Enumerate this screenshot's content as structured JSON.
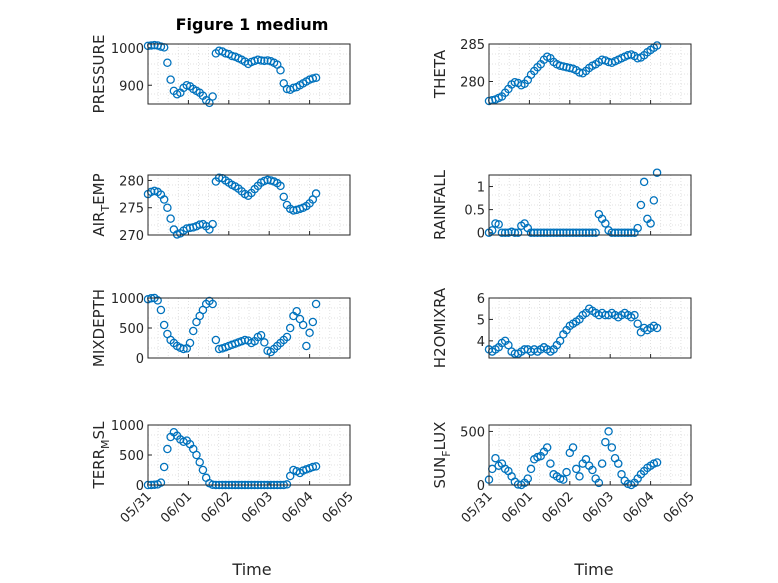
{
  "figure_title": "Figure 1 medium",
  "xlabel": "Time",
  "x_ticks": [
    "05/31",
    "06/01",
    "06/02",
    "06/03",
    "06/04",
    "06/05"
  ],
  "marker_color": "#0072BD",
  "chart_data": [
    {
      "type": "scatter",
      "name": "pressure",
      "ylabel": "PRESSURE",
      "xlim": [
        0,
        5
      ],
      "ylim": [
        850,
        1010
      ],
      "yticks": [
        900,
        1000
      ],
      "grid": true,
      "x": [
        0.0,
        0.08,
        0.16,
        0.24,
        0.32,
        0.4,
        0.48,
        0.56,
        0.64,
        0.72,
        0.8,
        0.88,
        0.96,
        1.04,
        1.12,
        1.2,
        1.28,
        1.36,
        1.44,
        1.52,
        1.6,
        1.68,
        1.76,
        1.84,
        1.92,
        2.0,
        2.08,
        2.16,
        2.24,
        2.32,
        2.4,
        2.48,
        2.56,
        2.64,
        2.72,
        2.8,
        2.88,
        2.96,
        3.04,
        3.12,
        3.2,
        3.28,
        3.36,
        3.44,
        3.52,
        3.6,
        3.68,
        3.76,
        3.84,
        3.92,
        4.0,
        4.08,
        4.16
      ],
      "y": [
        1005,
        1006,
        1007,
        1006,
        1003,
        1001,
        960,
        915,
        885,
        876,
        880,
        893,
        900,
        897,
        890,
        885,
        880,
        872,
        860,
        853,
        870,
        985,
        992,
        990,
        985,
        983,
        978,
        976,
        972,
        968,
        963,
        957,
        962,
        965,
        968,
        966,
        965,
        966,
        964,
        960,
        955,
        940,
        905,
        890,
        888,
        893,
        895,
        900,
        905,
        910,
        915,
        918,
        920
      ]
    },
    {
      "type": "scatter",
      "name": "theta",
      "ylabel": "THETA",
      "xlim": [
        0,
        5
      ],
      "ylim": [
        277,
        285
      ],
      "yticks": [
        280,
        285
      ],
      "grid": true,
      "x": [
        0.0,
        0.08,
        0.16,
        0.24,
        0.32,
        0.4,
        0.48,
        0.56,
        0.64,
        0.72,
        0.8,
        0.88,
        0.96,
        1.04,
        1.12,
        1.2,
        1.28,
        1.36,
        1.44,
        1.52,
        1.6,
        1.68,
        1.76,
        1.84,
        1.92,
        2.0,
        2.08,
        2.16,
        2.24,
        2.32,
        2.4,
        2.48,
        2.56,
        2.64,
        2.72,
        2.8,
        2.88,
        2.96,
        3.04,
        3.12,
        3.2,
        3.28,
        3.36,
        3.44,
        3.52,
        3.6,
        3.68,
        3.76,
        3.84,
        3.92,
        4.0,
        4.08,
        4.16
      ],
      "y": [
        277.4,
        277.5,
        277.6,
        277.8,
        278.0,
        278.5,
        279.0,
        279.6,
        279.9,
        279.8,
        279.5,
        279.7,
        280.2,
        280.9,
        281.4,
        281.9,
        282.3,
        282.9,
        283.3,
        283.1,
        282.6,
        282.3,
        282.1,
        282.0,
        281.9,
        281.8,
        281.7,
        281.5,
        281.2,
        281.1,
        281.4,
        281.8,
        282.1,
        282.3,
        282.6,
        282.9,
        282.8,
        282.6,
        282.5,
        282.7,
        282.9,
        283.1,
        283.3,
        283.5,
        283.6,
        283.4,
        283.1,
        283.2,
        283.5,
        283.9,
        284.2,
        284.5,
        284.8
      ]
    },
    {
      "type": "scatter",
      "name": "air_temp",
      "ylabel": "AIR_TEMP",
      "ylabel_parts": [
        "AIR",
        "T",
        "EMP"
      ],
      "xlim": [
        0,
        5
      ],
      "ylim": [
        270,
        281
      ],
      "yticks": [
        270,
        275,
        280
      ],
      "grid": true,
      "x": [
        0.0,
        0.08,
        0.16,
        0.24,
        0.32,
        0.4,
        0.48,
        0.56,
        0.64,
        0.72,
        0.8,
        0.88,
        0.96,
        1.04,
        1.12,
        1.2,
        1.28,
        1.36,
        1.44,
        1.52,
        1.6,
        1.68,
        1.76,
        1.84,
        1.92,
        2.0,
        2.08,
        2.16,
        2.24,
        2.32,
        2.4,
        2.48,
        2.56,
        2.64,
        2.72,
        2.8,
        2.88,
        2.96,
        3.04,
        3.12,
        3.2,
        3.28,
        3.36,
        3.44,
        3.52,
        3.6,
        3.68,
        3.76,
        3.84,
        3.92,
        4.0,
        4.08,
        4.16
      ],
      "y": [
        277.5,
        277.9,
        278.1,
        277.9,
        277.4,
        276.5,
        275.0,
        273.0,
        271.0,
        270.1,
        270.3,
        270.8,
        271.2,
        271.3,
        271.4,
        271.6,
        271.9,
        272.0,
        271.6,
        271.0,
        272.0,
        279.8,
        280.5,
        280.4,
        280.0,
        279.6,
        279.2,
        278.9,
        278.5,
        278.0,
        277.5,
        277.2,
        277.7,
        278.4,
        279.0,
        279.6,
        279.9,
        280.1,
        280.0,
        279.8,
        279.5,
        279.0,
        277.0,
        275.5,
        274.8,
        274.5,
        274.6,
        274.8,
        275.0,
        275.3,
        275.8,
        276.5,
        277.6
      ]
    },
    {
      "type": "scatter",
      "name": "rainfall",
      "ylabel": "RAINFALL",
      "xlim": [
        0,
        5
      ],
      "ylim": [
        -0.05,
        1.25
      ],
      "yticks": [
        0,
        0.5,
        1
      ],
      "ytick_labels": [
        "0",
        "0.5",
        "1"
      ],
      "grid": true,
      "x": [
        0.0,
        0.08,
        0.16,
        0.24,
        0.32,
        0.4,
        0.48,
        0.56,
        0.64,
        0.72,
        0.8,
        0.88,
        0.96,
        1.04,
        1.12,
        1.2,
        1.28,
        1.36,
        1.44,
        1.52,
        1.6,
        1.68,
        1.76,
        1.84,
        1.92,
        2.0,
        2.08,
        2.16,
        2.24,
        2.32,
        2.4,
        2.48,
        2.56,
        2.64,
        2.72,
        2.8,
        2.88,
        2.96,
        3.04,
        3.12,
        3.2,
        3.28,
        3.36,
        3.44,
        3.52,
        3.6,
        3.68,
        3.76,
        3.84,
        3.92,
        4.0,
        4.08,
        4.16
      ],
      "y": [
        0.0,
        0.05,
        0.2,
        0.18,
        0.0,
        0.0,
        0.0,
        0.02,
        0.0,
        0.0,
        0.15,
        0.2,
        0.1,
        0.0,
        0.0,
        0.0,
        0.0,
        0.0,
        0.0,
        0.0,
        0.0,
        0.0,
        0.0,
        0.0,
        0.0,
        0.0,
        0.0,
        0.0,
        0.0,
        0.0,
        0.0,
        0.0,
        0.0,
        0.0,
        0.4,
        0.3,
        0.2,
        0.05,
        0.0,
        0.0,
        0.0,
        0.0,
        0.0,
        0.0,
        0.0,
        0.0,
        0.1,
        0.6,
        1.1,
        0.3,
        0.2,
        0.7,
        1.3
      ]
    },
    {
      "type": "scatter",
      "name": "mixdepth",
      "ylabel": "MIXDEPTH",
      "xlim": [
        0,
        5
      ],
      "ylim": [
        0,
        1000
      ],
      "yticks": [
        0,
        500,
        1000
      ],
      "grid": true,
      "x": [
        0.0,
        0.08,
        0.16,
        0.24,
        0.32,
        0.4,
        0.48,
        0.56,
        0.64,
        0.72,
        0.8,
        0.88,
        0.96,
        1.04,
        1.12,
        1.2,
        1.28,
        1.36,
        1.44,
        1.52,
        1.6,
        1.68,
        1.76,
        1.84,
        1.92,
        2.0,
        2.08,
        2.16,
        2.24,
        2.32,
        2.4,
        2.48,
        2.56,
        2.64,
        2.72,
        2.8,
        2.88,
        2.96,
        3.04,
        3.12,
        3.2,
        3.28,
        3.36,
        3.44,
        3.52,
        3.6,
        3.68,
        3.76,
        3.84,
        3.92,
        4.0,
        4.08,
        4.16
      ],
      "y": [
        980,
        995,
        1000,
        960,
        800,
        550,
        400,
        300,
        250,
        200,
        170,
        150,
        160,
        250,
        450,
        600,
        700,
        800,
        900,
        950,
        900,
        300,
        150,
        160,
        180,
        200,
        220,
        240,
        260,
        280,
        300,
        290,
        250,
        280,
        350,
        380,
        260,
        120,
        100,
        150,
        200,
        250,
        300,
        350,
        500,
        700,
        780,
        650,
        550,
        200,
        420,
        600,
        900
      ]
    },
    {
      "type": "scatter",
      "name": "h2omixra",
      "ylabel": "H2OMIXRA",
      "xlim": [
        0,
        5
      ],
      "ylim": [
        3.2,
        6
      ],
      "yticks": [
        4,
        5,
        6
      ],
      "grid": true,
      "x": [
        0.0,
        0.08,
        0.16,
        0.24,
        0.32,
        0.4,
        0.48,
        0.56,
        0.64,
        0.72,
        0.8,
        0.88,
        0.96,
        1.04,
        1.12,
        1.2,
        1.28,
        1.36,
        1.44,
        1.52,
        1.6,
        1.68,
        1.76,
        1.84,
        1.92,
        2.0,
        2.08,
        2.16,
        2.24,
        2.32,
        2.4,
        2.48,
        2.56,
        2.64,
        2.72,
        2.8,
        2.88,
        2.96,
        3.04,
        3.12,
        3.2,
        3.28,
        3.36,
        3.44,
        3.52,
        3.6,
        3.68,
        3.76,
        3.84,
        3.92,
        4.0,
        4.08,
        4.16
      ],
      "y": [
        3.6,
        3.5,
        3.6,
        3.7,
        3.9,
        4.0,
        3.8,
        3.5,
        3.4,
        3.4,
        3.5,
        3.6,
        3.6,
        3.5,
        3.6,
        3.5,
        3.6,
        3.7,
        3.6,
        3.5,
        3.6,
        3.8,
        4.0,
        4.3,
        4.5,
        4.7,
        4.8,
        4.9,
        5.0,
        5.2,
        5.3,
        5.5,
        5.4,
        5.3,
        5.2,
        5.3,
        5.2,
        5.2,
        5.3,
        5.2,
        5.1,
        5.2,
        5.3,
        5.2,
        5.1,
        5.2,
        4.8,
        4.4,
        4.6,
        4.5,
        4.6,
        4.7,
        4.6
      ]
    },
    {
      "type": "scatter",
      "name": "terr_msl",
      "ylabel": "TERR_MSL",
      "ylabel_parts": [
        "TERR",
        "M",
        "SL"
      ],
      "xlim": [
        0,
        5
      ],
      "ylim": [
        0,
        1000
      ],
      "yticks": [
        0,
        500,
        1000
      ],
      "grid": true,
      "x": [
        0.0,
        0.08,
        0.16,
        0.24,
        0.32,
        0.4,
        0.48,
        0.56,
        0.64,
        0.72,
        0.8,
        0.88,
        0.96,
        1.04,
        1.12,
        1.2,
        1.28,
        1.36,
        1.44,
        1.52,
        1.6,
        1.68,
        1.76,
        1.84,
        1.92,
        2.0,
        2.08,
        2.16,
        2.24,
        2.32,
        2.4,
        2.48,
        2.56,
        2.64,
        2.72,
        2.8,
        2.88,
        2.96,
        3.04,
        3.12,
        3.2,
        3.28,
        3.36,
        3.44,
        3.52,
        3.6,
        3.68,
        3.76,
        3.84,
        3.92,
        4.0,
        4.08,
        4.16
      ],
      "y": [
        0,
        0,
        5,
        10,
        40,
        300,
        600,
        800,
        880,
        820,
        760,
        720,
        740,
        680,
        600,
        500,
        380,
        250,
        120,
        30,
        5,
        0,
        0,
        0,
        0,
        0,
        0,
        0,
        0,
        0,
        0,
        0,
        0,
        0,
        0,
        0,
        0,
        0,
        0,
        0,
        0,
        0,
        0,
        10,
        150,
        250,
        230,
        200,
        240,
        260,
        280,
        300,
        310
      ]
    },
    {
      "type": "scatter",
      "name": "sun_flux",
      "ylabel": "SUN_FLUX",
      "ylabel_parts": [
        "SUN",
        "F",
        "LUX"
      ],
      "xlim": [
        0,
        5
      ],
      "ylim": [
        0,
        560
      ],
      "yticks": [
        0,
        500
      ],
      "grid": true,
      "x": [
        0.0,
        0.08,
        0.16,
        0.24,
        0.32,
        0.4,
        0.48,
        0.56,
        0.64,
        0.72,
        0.8,
        0.88,
        0.96,
        1.04,
        1.12,
        1.2,
        1.28,
        1.36,
        1.44,
        1.52,
        1.6,
        1.68,
        1.76,
        1.84,
        1.92,
        2.0,
        2.08,
        2.16,
        2.24,
        2.32,
        2.4,
        2.48,
        2.56,
        2.64,
        2.72,
        2.8,
        2.88,
        2.96,
        3.04,
        3.12,
        3.2,
        3.28,
        3.36,
        3.44,
        3.52,
        3.6,
        3.68,
        3.76,
        3.84,
        3.92,
        4.0,
        4.08,
        4.16
      ],
      "y": [
        50,
        150,
        250,
        180,
        200,
        150,
        130,
        80,
        30,
        5,
        0,
        20,
        60,
        150,
        240,
        260,
        270,
        310,
        350,
        200,
        100,
        80,
        60,
        50,
        120,
        300,
        350,
        150,
        80,
        200,
        240,
        180,
        140,
        60,
        20,
        200,
        400,
        500,
        350,
        250,
        200,
        100,
        40,
        10,
        0,
        20,
        60,
        100,
        130,
        160,
        180,
        200,
        210
      ]
    }
  ]
}
